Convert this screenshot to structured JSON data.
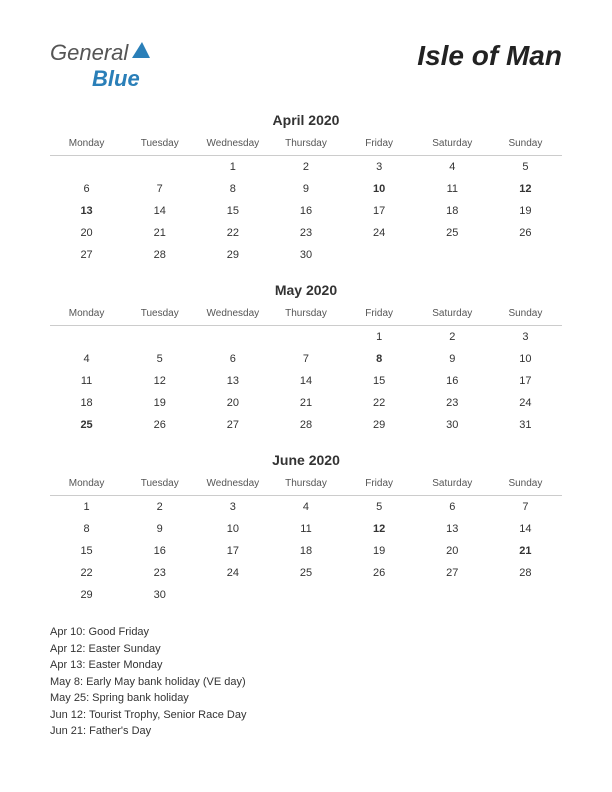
{
  "logo": {
    "text_general": "General",
    "text_blue": "Blue",
    "shape_color": "#2a7fb8",
    "text_general_color": "#555555"
  },
  "region_title": "Isle of Man",
  "background_color": "#ffffff",
  "text_color": "#333333",
  "holiday_color": "#cc0000",
  "header_border_color": "#cccccc",
  "day_headers": [
    "Monday",
    "Tuesday",
    "Wednesday",
    "Thursday",
    "Friday",
    "Saturday",
    "Sunday"
  ],
  "months": [
    {
      "title": "April 2020",
      "weeks": [
        [
          null,
          null,
          1,
          2,
          3,
          4,
          5
        ],
        [
          6,
          7,
          8,
          9,
          10,
          11,
          12
        ],
        [
          13,
          14,
          15,
          16,
          17,
          18,
          19
        ],
        [
          20,
          21,
          22,
          23,
          24,
          25,
          26
        ],
        [
          27,
          28,
          29,
          30,
          null,
          null,
          null
        ]
      ],
      "holidays": [
        10,
        12,
        13
      ]
    },
    {
      "title": "May 2020",
      "weeks": [
        [
          null,
          null,
          null,
          null,
          1,
          2,
          3
        ],
        [
          4,
          5,
          6,
          7,
          8,
          9,
          10
        ],
        [
          11,
          12,
          13,
          14,
          15,
          16,
          17
        ],
        [
          18,
          19,
          20,
          21,
          22,
          23,
          24
        ],
        [
          25,
          26,
          27,
          28,
          29,
          30,
          31
        ]
      ],
      "holidays": [
        8,
        25
      ]
    },
    {
      "title": "June 2020",
      "weeks": [
        [
          1,
          2,
          3,
          4,
          5,
          6,
          7
        ],
        [
          8,
          9,
          10,
          11,
          12,
          13,
          14
        ],
        [
          15,
          16,
          17,
          18,
          19,
          20,
          21
        ],
        [
          22,
          23,
          24,
          25,
          26,
          27,
          28
        ],
        [
          29,
          30,
          null,
          null,
          null,
          null,
          null
        ]
      ],
      "holidays": [
        12,
        21
      ]
    }
  ],
  "holiday_list": [
    "Apr 10: Good Friday",
    "Apr 12: Easter Sunday",
    "Apr 13: Easter Monday",
    "May 8: Early May bank holiday (VE day)",
    "May 25: Spring bank holiday",
    "Jun 12: Tourist Trophy, Senior Race Day",
    "Jun 21: Father's Day"
  ]
}
